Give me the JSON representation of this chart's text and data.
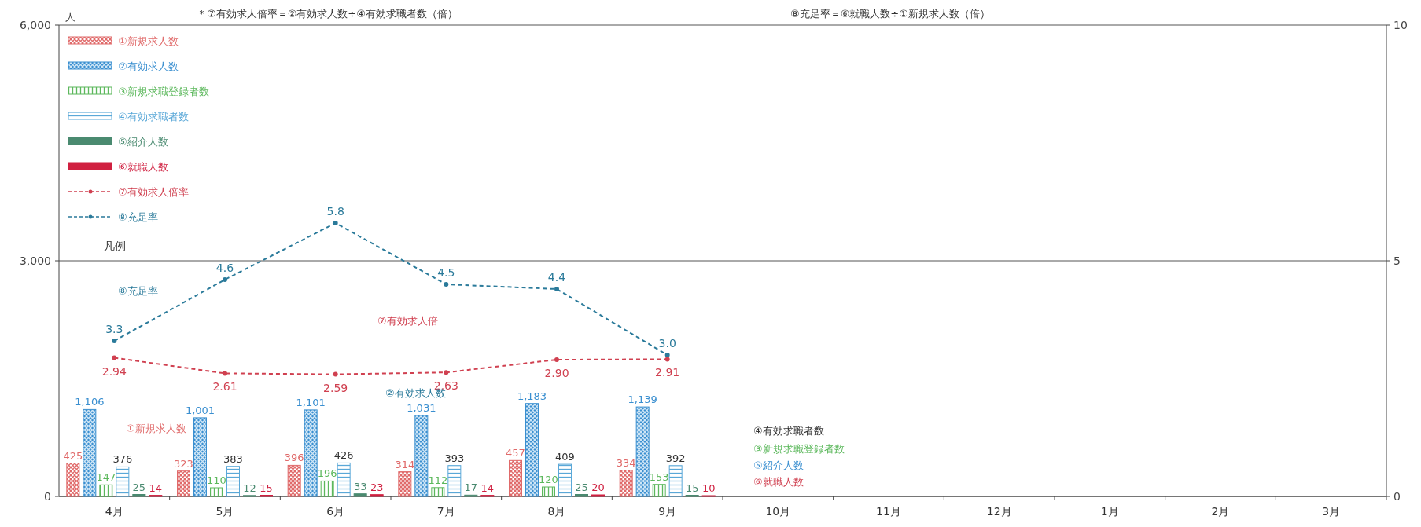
{
  "chart_data": {
    "type": "bar",
    "ylabel": "人",
    "legend_title": "凡例",
    "legend": "top left",
    "grid": "y",
    "marker": "circle",
    "annotations": [
      "＊⑦有効求人倍率＝②有効求人数÷④有効求職者数（倍）",
      "⑧充足率＝⑥就職人数÷①新規求人数（倍）",
      "⑧充足率",
      "⑦有効求人倍",
      "②有効求人数",
      "①新規求人数",
      "④有効求職者数",
      "③新規求職登録者数",
      "⑤紹介人数",
      "⑥就職人数"
    ],
    "categories": [
      "4月",
      "5月",
      "6月",
      "7月",
      "8月",
      "9月",
      "10月",
      "11月",
      "12月",
      "1月",
      "2月",
      "3月"
    ],
    "ylim": [
      0,
      6000
    ],
    "yticks": [
      0,
      {
        "value": 3000,
        "label": "3,000"
      },
      {
        "value": 6000,
        "label": "6,000"
      }
    ],
    "y2lim": [
      0,
      10
    ],
    "y2ticks": [
      0,
      5,
      10
    ],
    "series": [
      {
        "name": "①新規求人数",
        "color": "#e06a6a",
        "values": [
          425,
          323,
          396,
          314,
          457,
          334,
          null,
          null,
          null,
          null,
          null,
          null
        ],
        "value_labels": [
          "425",
          "323",
          "396",
          "314",
          "457",
          "334",
          null,
          null,
          null,
          null,
          null,
          null
        ]
      },
      {
        "name": "②有効求人数",
        "color": "#3a8fd0",
        "values": [
          1106,
          1001,
          1101,
          1031,
          1183,
          1139,
          null,
          null,
          null,
          null,
          null,
          null
        ],
        "value_labels": [
          "1,106",
          "1,001",
          "1,101",
          "1,031",
          "1,183",
          "1,139",
          null,
          null,
          null,
          null,
          null,
          null
        ]
      },
      {
        "name": "③新規求職登録者数",
        "color": "#5cb85c",
        "values": [
          147,
          110,
          196,
          112,
          120,
          153,
          null,
          null,
          null,
          null,
          null,
          null
        ],
        "value_labels": [
          "147",
          "110",
          "196",
          "112",
          "120",
          "153",
          null,
          null,
          null,
          null,
          null,
          null
        ]
      },
      {
        "name": "④有効求職者数",
        "color": "#5aa8d8",
        "values": [
          376,
          383,
          426,
          393,
          409,
          392,
          null,
          null,
          null,
          null,
          null,
          null
        ],
        "value_labels": [
          "376",
          "383",
          "426",
          "393",
          "409",
          "392",
          null,
          null,
          null,
          null,
          null,
          null
        ]
      },
      {
        "name": "⑤紹介人数",
        "color": "#4a8a70",
        "values": [
          25,
          12,
          33,
          17,
          25,
          15,
          null,
          null,
          null,
          null,
          null,
          null
        ],
        "value_labels": [
          "25",
          "12",
          "33",
          "17",
          "25",
          "15",
          null,
          null,
          null,
          null,
          null,
          null
        ]
      },
      {
        "name": "⑥就職人数",
        "color": "#d02040",
        "values": [
          14,
          15,
          23,
          14,
          20,
          10,
          null,
          null,
          null,
          null,
          null,
          null
        ],
        "value_labels": [
          "14",
          "15",
          "23",
          "14",
          "20",
          "10",
          null,
          null,
          null,
          null,
          null,
          null
        ]
      },
      {
        "name": "⑦有効求人倍率",
        "type": "line",
        "axis": "y2",
        "line_style": "dashed",
        "color": "#d04050",
        "values": [
          2.94,
          2.61,
          2.59,
          2.63,
          2.9,
          2.91,
          null,
          null,
          null,
          null,
          null,
          null
        ],
        "value_labels": [
          "2.94",
          "2.61",
          "2.59",
          "2.63",
          "2.90",
          "2.91",
          null,
          null,
          null,
          null,
          null,
          null
        ]
      },
      {
        "name": "⑧充足率",
        "type": "line",
        "axis": "y2",
        "line_style": "dashed",
        "color": "#2a7a9a",
        "values": [
          3.3,
          4.6,
          5.8,
          4.5,
          4.4,
          3.0,
          null,
          null,
          null,
          null,
          null,
          null
        ],
        "value_labels": [
          "3.3",
          "4.6",
          "5.8",
          "4.5",
          "4.4",
          "3.0",
          null,
          null,
          null,
          null,
          null,
          null
        ]
      }
    ]
  }
}
